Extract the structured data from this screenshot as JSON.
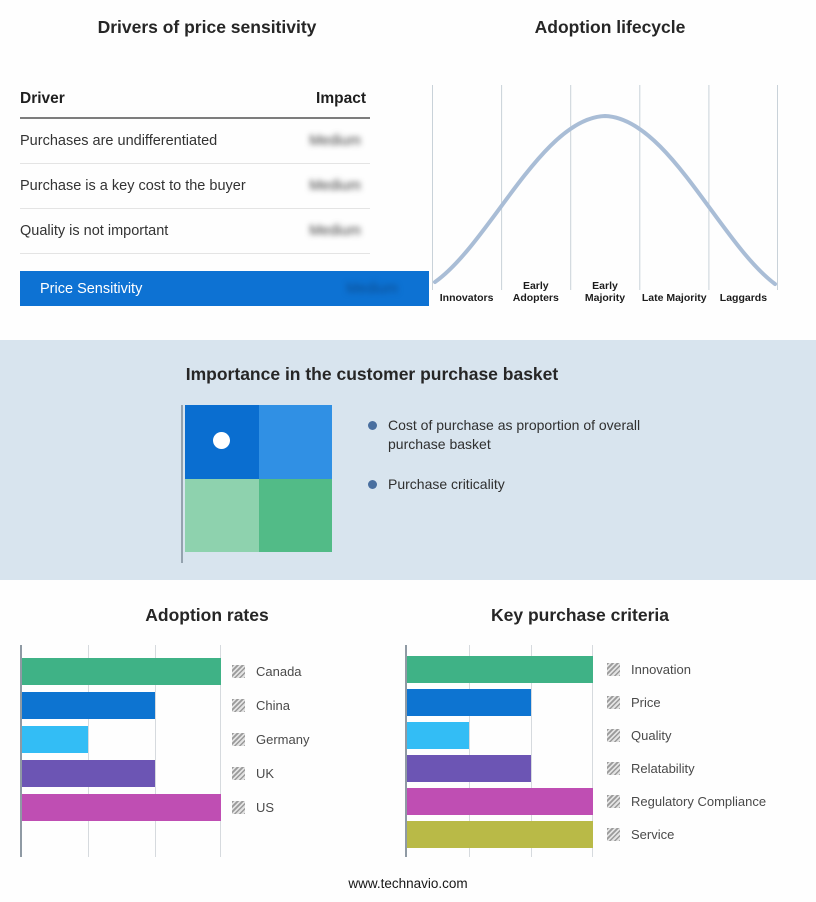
{
  "accent_colors": {
    "highlight_blue": "#0d72d3",
    "band_background": "#d8e4ee",
    "curve": "#a9bdd6",
    "axis": "#8f9aa4"
  },
  "drivers_table": {
    "title": "Drivers of price sensitivity",
    "columns": {
      "driver": "Driver",
      "impact": "Impact"
    },
    "impact_values_blurred": true,
    "rows": [
      {
        "driver": "Purchases are undifferentiated",
        "impact": "Medium"
      },
      {
        "driver": "Purchase is a key cost to the buyer",
        "impact": "Medium"
      },
      {
        "driver": "Quality is not important",
        "impact": "Medium"
      }
    ],
    "highlight_row": {
      "driver": "Price Sensitivity",
      "impact": "Medium"
    }
  },
  "adoption_lifecycle": {
    "title": "Adoption lifecycle"
  },
  "purchase_basket": {
    "title": "Importance in the customer purchase basket",
    "bullets": [
      "Cost of purchase as proportion of overall purchase basket",
      "Purchase criticality"
    ],
    "quadrant_colors": [
      "#0a6ed0",
      "#3090e4",
      "#8ed2ae",
      "#52bb87"
    ],
    "marker": "white dot in top-left quadrant"
  },
  "footer": "www.technavio.com",
  "chart_data": [
    {
      "type": "line",
      "title": "Adoption lifecycle",
      "x": [
        "Innovators",
        "Early Adopters",
        "Early Majority",
        "Late Majority",
        "Laggards"
      ],
      "y_relative": [
        0.1,
        0.55,
        1.0,
        0.55,
        0.05
      ],
      "xlabel": "",
      "ylabel": "",
      "grid": "vertical stage separators",
      "line_color": "#a9bdd6",
      "legend_position": "none"
    },
    {
      "type": "bar",
      "orientation": "horizontal",
      "title": "Adoption rates",
      "categories": [
        "Canada",
        "China",
        "Germany",
        "UK",
        "US"
      ],
      "values": [
        3,
        2,
        1,
        2,
        3
      ],
      "xlim": [
        0,
        3
      ],
      "colors": [
        "#3fb286",
        "#0d74d1",
        "#33bdf5",
        "#6c55b4",
        "#bf4eb3"
      ],
      "grid": true,
      "legend_position": "right"
    },
    {
      "type": "bar",
      "orientation": "horizontal",
      "title": "Key purchase criteria",
      "categories": [
        "Innovation",
        "Price",
        "Quality",
        "Relatability",
        "Regulatory Compliance",
        "Service"
      ],
      "values": [
        3,
        2,
        1,
        2,
        3,
        3
      ],
      "xlim": [
        0,
        3
      ],
      "colors": [
        "#3fb286",
        "#0d74d1",
        "#33bdf5",
        "#6c55b4",
        "#bf4eb3",
        "#b9ba47"
      ],
      "grid": true,
      "legend_position": "right"
    }
  ]
}
